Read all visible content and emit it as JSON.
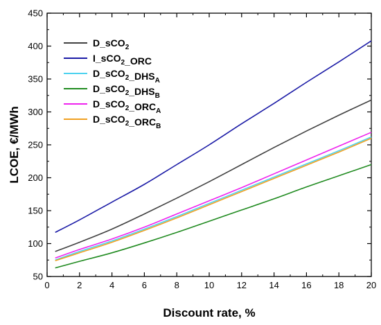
{
  "chart_data": {
    "type": "line",
    "title": "",
    "xlabel": "Discount rate, %",
    "ylabel": "LCOE, €/MWh",
    "xlim": [
      0,
      20
    ],
    "ylim": [
      50,
      450
    ],
    "xticks": [
      0,
      2,
      4,
      6,
      8,
      10,
      12,
      14,
      16,
      18,
      20
    ],
    "yticks": [
      50,
      100,
      150,
      200,
      250,
      300,
      350,
      400,
      450
    ],
    "grid": false,
    "legend_position": "top-left",
    "x": [
      0.5,
      2,
      4,
      6,
      8,
      10,
      12,
      14,
      16,
      18,
      20
    ],
    "series": [
      {
        "legend": [
          {
            "t": "D_sCO"
          },
          {
            "t": "2",
            "sub": true
          }
        ],
        "color": "#404040",
        "values": [
          88,
          102,
          122,
          145,
          169,
          194,
          220,
          246,
          271,
          295,
          318
        ]
      },
      {
        "legend": [
          {
            "t": "I_sCO"
          },
          {
            "t": "2",
            "sub": true
          },
          {
            "t": "_ORC"
          }
        ],
        "color": "#1a1aa6",
        "values": [
          117,
          136,
          163,
          190,
          220,
          250,
          282,
          313,
          345,
          376,
          408
        ]
      },
      {
        "legend": [
          {
            "t": "D_sCO"
          },
          {
            "t": "2",
            "sub": true
          },
          {
            "t": "_DHS"
          },
          {
            "t": "A",
            "sub": true
          }
        ],
        "color": "#4cd2ef",
        "values": [
          75,
          88,
          104,
          122,
          141,
          161,
          181,
          201,
          221,
          241,
          262
        ]
      },
      {
        "legend": [
          {
            "t": "D_sCO"
          },
          {
            "t": "2",
            "sub": true
          },
          {
            "t": "_DHS"
          },
          {
            "t": "B",
            "sub": true
          }
        ],
        "color": "#1f8a1f",
        "values": [
          63,
          73,
          86,
          101,
          117,
          134,
          151,
          168,
          186,
          203,
          220
        ]
      },
      {
        "legend": [
          {
            "t": "D_sCO"
          },
          {
            "t": "2",
            "sub": true
          },
          {
            "t": "_ORC"
          },
          {
            "t": "A",
            "sub": true
          }
        ],
        "color": "#ee22ee",
        "values": [
          78,
          91,
          107,
          125,
          145,
          165,
          185,
          206,
          227,
          248,
          269
        ]
      },
      {
        "legend": [
          {
            "t": "D_sCO"
          },
          {
            "t": "2",
            "sub": true
          },
          {
            "t": "_ORC"
          },
          {
            "t": "B",
            "sub": true
          }
        ],
        "color": "#f0a020",
        "values": [
          74,
          86,
          102,
          120,
          139,
          159,
          179,
          199,
          219,
          239,
          260
        ]
      }
    ]
  }
}
